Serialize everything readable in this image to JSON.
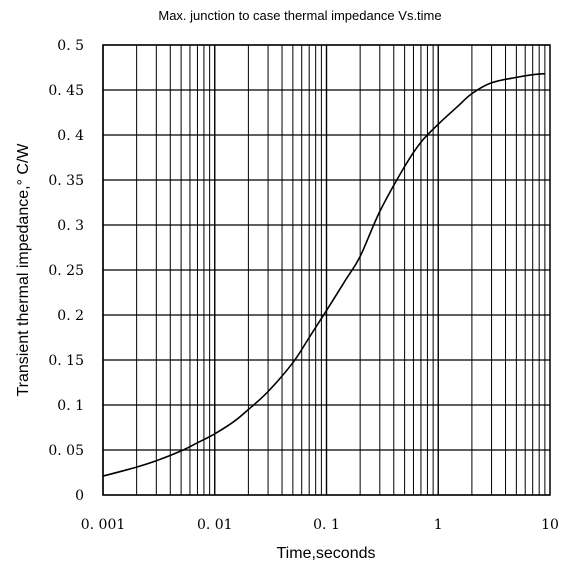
{
  "chart_data": {
    "type": "line",
    "title": "Max. junction to case thermal impedance  Vs.time",
    "xlabel": "Time,seconds",
    "ylabel": "Transient thermal impedance,° C/W",
    "x_scale": "log",
    "xlim": [
      0.001,
      10
    ],
    "ylim": [
      0,
      0.5
    ],
    "x_ticks": [
      {
        "value": 0.001,
        "label": "0. 001"
      },
      {
        "value": 0.01,
        "label": "0. 01"
      },
      {
        "value": 0.1,
        "label": "0. 1"
      },
      {
        "value": 1,
        "label": "1"
      },
      {
        "value": 10,
        "label": "10"
      }
    ],
    "y_ticks": [
      {
        "value": 0,
        "label": "0"
      },
      {
        "value": 0.05,
        "label": "0. 05"
      },
      {
        "value": 0.1,
        "label": "0. 1"
      },
      {
        "value": 0.15,
        "label": "0. 15"
      },
      {
        "value": 0.2,
        "label": "0. 2"
      },
      {
        "value": 0.25,
        "label": "0. 25"
      },
      {
        "value": 0.3,
        "label": "0. 3"
      },
      {
        "value": 0.35,
        "label": "0. 35"
      },
      {
        "value": 0.4,
        "label": "0. 4"
      },
      {
        "value": 0.45,
        "label": "0. 45"
      },
      {
        "value": 0.5,
        "label": "0. 5"
      }
    ],
    "grid": true,
    "line_color": "#000000",
    "series": [
      {
        "x": [
          0.001,
          0.002,
          0.003,
          0.005,
          0.007,
          0.01,
          0.015,
          0.02,
          0.03,
          0.05,
          0.07,
          0.1,
          0.15,
          0.2,
          0.3,
          0.5,
          0.7,
          1,
          1.5,
          2,
          3,
          5,
          7,
          9
        ],
        "y": [
          0.021,
          0.031,
          0.038,
          0.049,
          0.058,
          0.068,
          0.082,
          0.095,
          0.115,
          0.147,
          0.175,
          0.205,
          0.24,
          0.265,
          0.315,
          0.365,
          0.392,
          0.412,
          0.432,
          0.446,
          0.458,
          0.464,
          0.467,
          0.468
        ]
      }
    ]
  }
}
